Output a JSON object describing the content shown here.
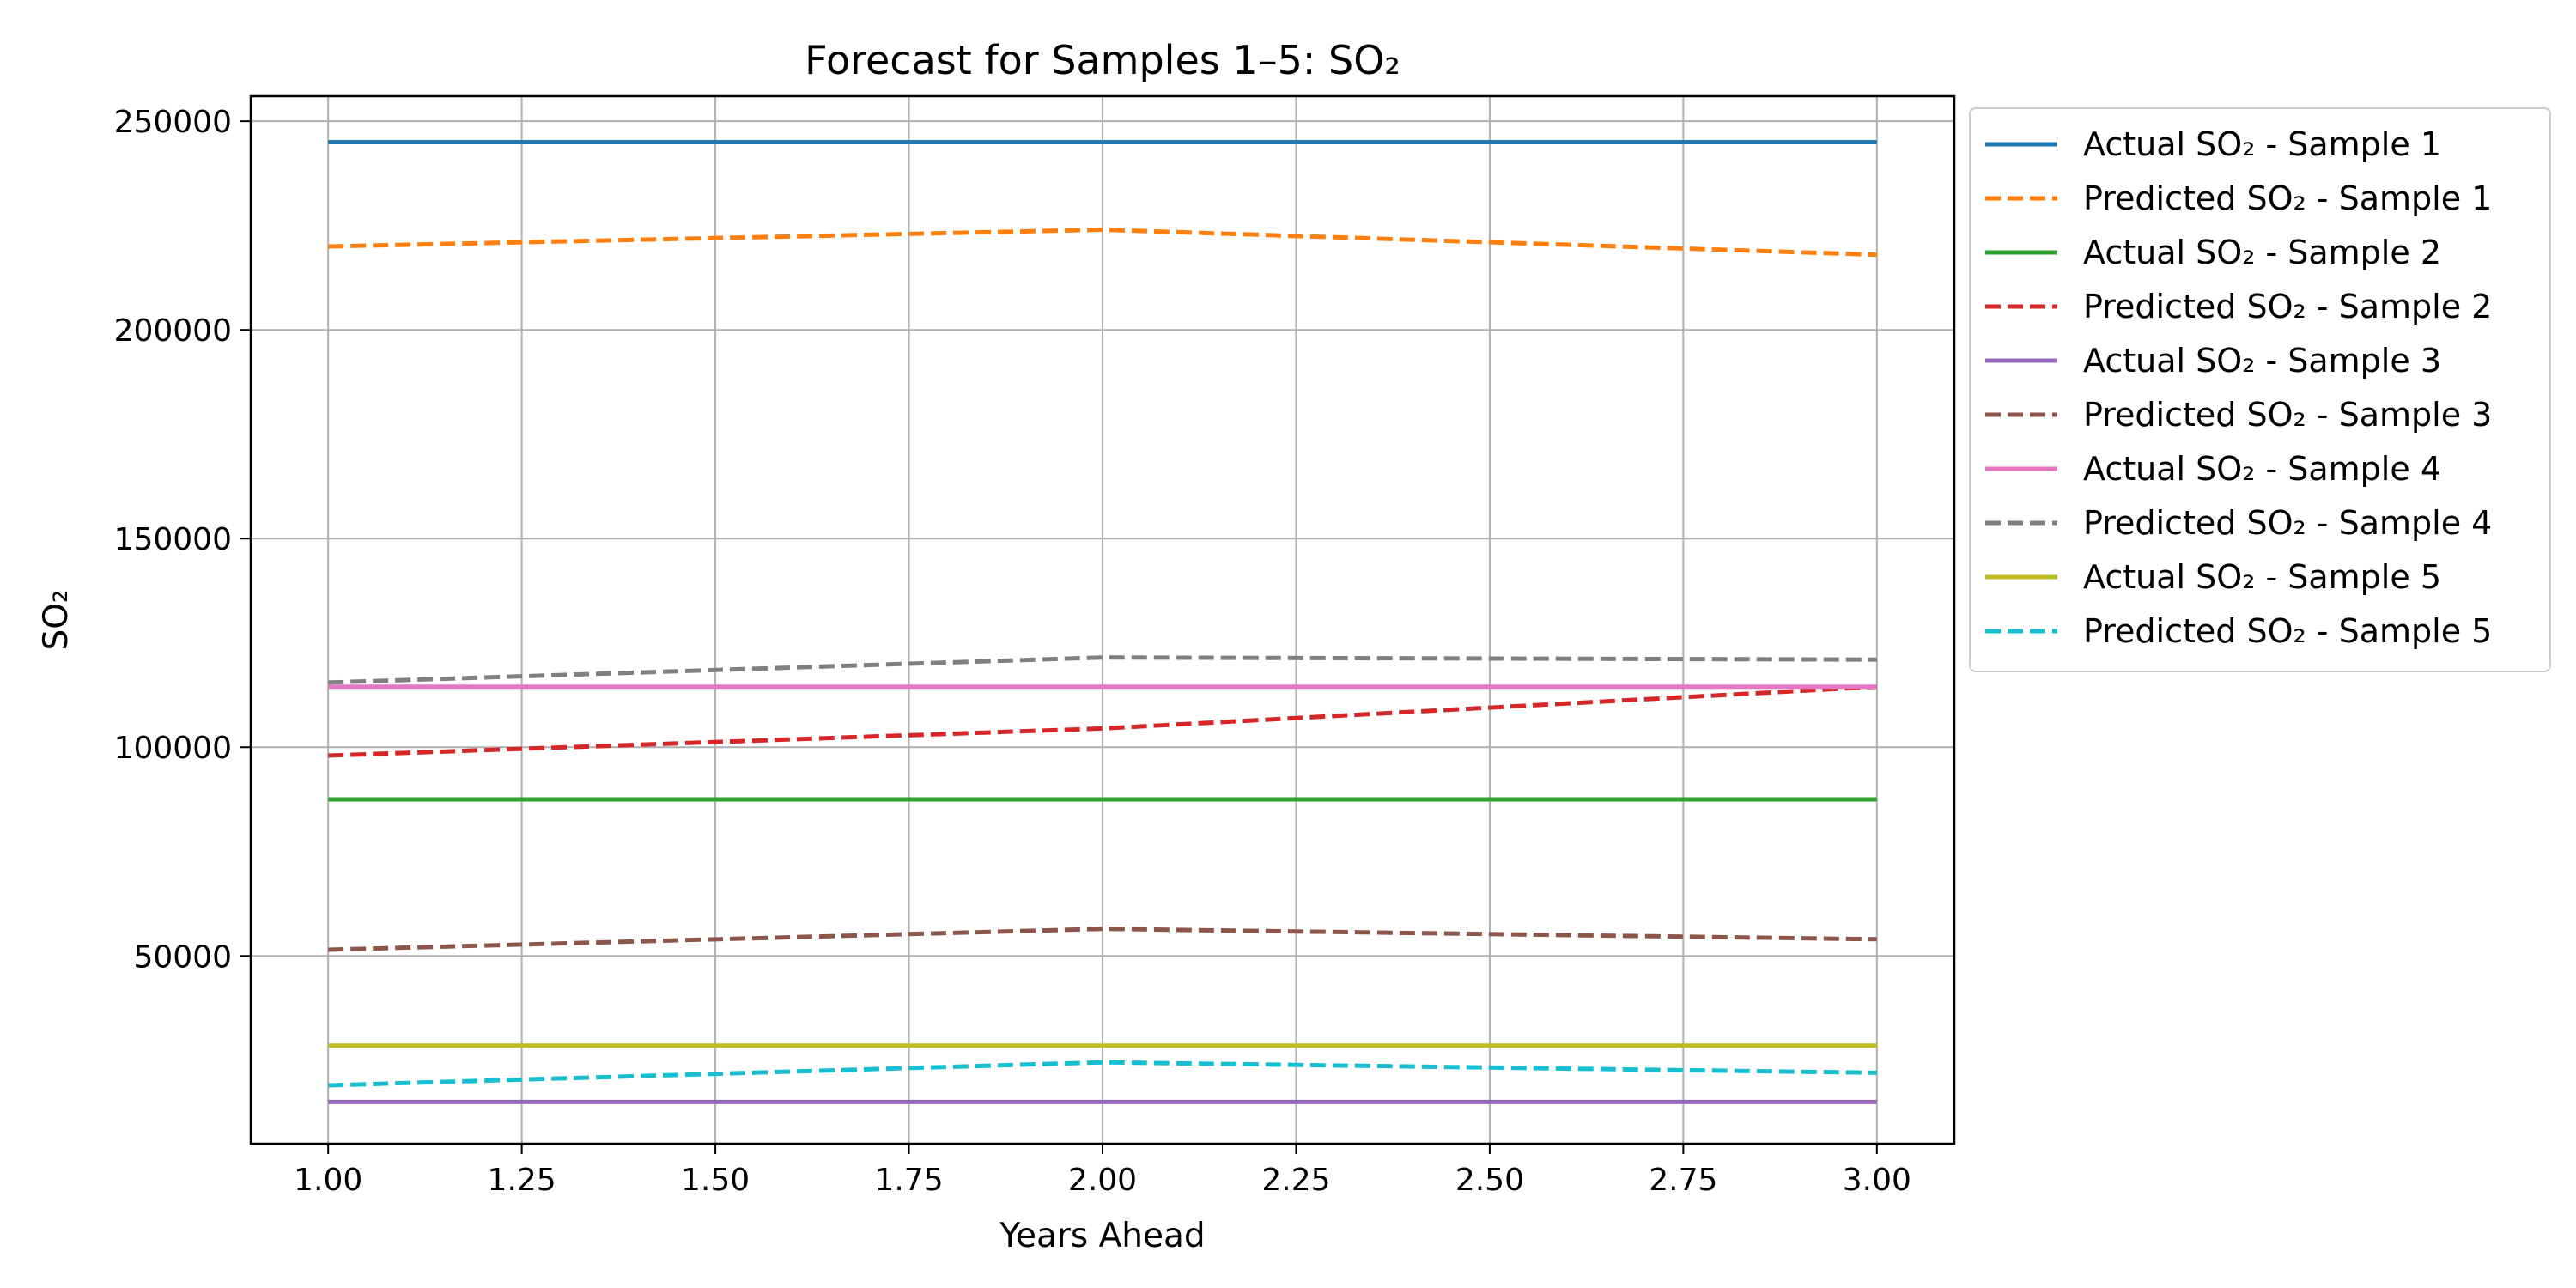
{
  "chart_data": {
    "type": "line",
    "title": "Forecast for Samples 1–5: SO₂",
    "xlabel": "Years Ahead",
    "ylabel": "SO₂",
    "xlim": [
      0.9,
      3.1
    ],
    "ylim": [
      5000,
      256000
    ],
    "x_ticks": [
      1.0,
      1.25,
      1.5,
      1.75,
      2.0,
      2.25,
      2.5,
      2.75,
      3.0
    ],
    "x_tick_labels": [
      "1.00",
      "1.25",
      "1.50",
      "1.75",
      "2.00",
      "2.25",
      "2.50",
      "2.75",
      "3.00"
    ],
    "y_ticks": [
      50000,
      100000,
      150000,
      200000,
      250000
    ],
    "y_tick_labels": [
      "50000",
      "100000",
      "150000",
      "200000",
      "250000"
    ],
    "grid": true,
    "legend_position": "outside-right-top",
    "x": [
      1,
      2,
      3
    ],
    "series": [
      {
        "name": "Actual SO₂ - Sample 1",
        "values": [
          245000,
          245000,
          245000
        ],
        "color": "#1f77b4",
        "dash": "solid"
      },
      {
        "name": "Predicted SO₂ - Sample 1",
        "values": [
          220000,
          224000,
          218000
        ],
        "color": "#ff7f0e",
        "dash": "dashed"
      },
      {
        "name": "Actual SO₂ - Sample 2",
        "values": [
          87500,
          87500,
          87500
        ],
        "color": "#2ca02c",
        "dash": "solid"
      },
      {
        "name": "Predicted SO₂ - Sample 2",
        "values": [
          98000,
          104500,
          114500
        ],
        "color": "#d62728",
        "dash": "dashed"
      },
      {
        "name": "Actual SO₂ - Sample 3",
        "values": [
          15000,
          15000,
          15000
        ],
        "color": "#9467bd",
        "dash": "solid"
      },
      {
        "name": "Predicted SO₂ - Sample 3",
        "values": [
          51500,
          56500,
          54000
        ],
        "color": "#8c564b",
        "dash": "dashed"
      },
      {
        "name": "Actual SO₂ - Sample 4",
        "values": [
          114500,
          114500,
          114500
        ],
        "color": "#e377c2",
        "dash": "solid"
      },
      {
        "name": "Predicted SO₂ - Sample 4",
        "values": [
          115500,
          121500,
          121000
        ],
        "color": "#7f7f7f",
        "dash": "dashed"
      },
      {
        "name": "Actual SO₂ - Sample 5",
        "values": [
          28500,
          28500,
          28500
        ],
        "color": "#bcbd22",
        "dash": "solid"
      },
      {
        "name": "Predicted SO₂ - Sample 5",
        "values": [
          19000,
          24500,
          22000
        ],
        "color": "#17becf",
        "dash": "dashed"
      }
    ]
  }
}
